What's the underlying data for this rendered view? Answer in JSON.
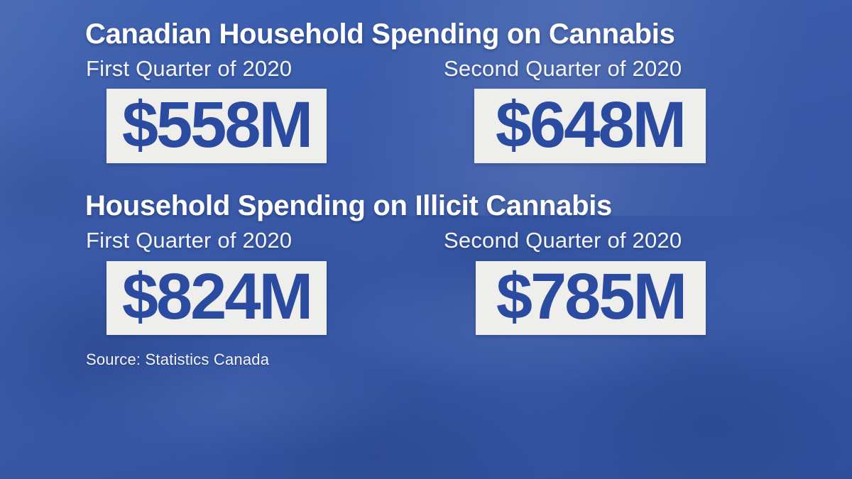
{
  "graphic": {
    "sections": [
      {
        "title": "Canadian Household Spending on Cannabis",
        "items": [
          {
            "label": "First Quarter of 2020",
            "value": "$558M"
          },
          {
            "label": "Second Quarter of 2020",
            "value": "$648M"
          }
        ]
      },
      {
        "title": "Household Spending on Illicit Cannabis",
        "items": [
          {
            "label": "First Quarter of 2020",
            "value": "$824M"
          },
          {
            "label": "Second Quarter of 2020",
            "value": "$785M"
          }
        ]
      }
    ],
    "source": "Source: Statistics Canada"
  },
  "colors": {
    "background_top": "#3e61b0",
    "background_bottom": "#2f4f9b",
    "title_text": "#ffffff",
    "label_text": "#f2f5fb",
    "value_text": "#2b4ba0",
    "value_box_bg": "#eeefed"
  },
  "chart_data": {
    "type": "table",
    "title": "Canadian Household Spending on Cannabis",
    "subtitle": "Household Spending on Illicit Cannabis",
    "categories": [
      "First Quarter of 2020",
      "Second Quarter of 2020"
    ],
    "series": [
      {
        "name": "Canadian Household Spending on Cannabis",
        "values": [
          558,
          648
        ]
      },
      {
        "name": "Household Spending on Illicit Cannabis",
        "values": [
          824,
          785
        ]
      }
    ],
    "unit": "CAD millions",
    "source": "Source: Statistics Canada",
    "legend_position": "none",
    "grid": false
  }
}
